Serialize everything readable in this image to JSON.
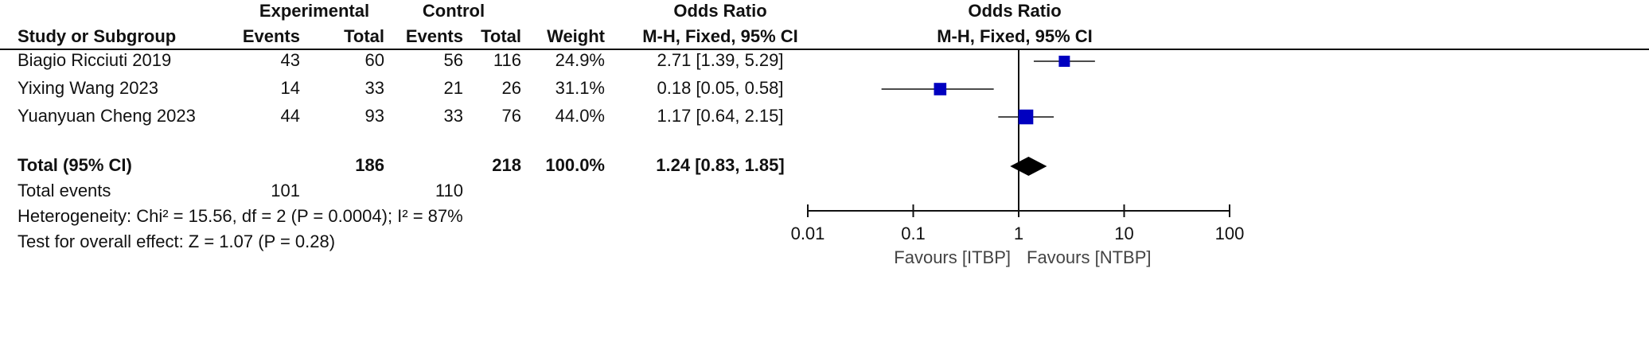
{
  "chart_data": {
    "type": "forest",
    "group_headers": {
      "experimental": "Experimental",
      "control": "Control",
      "odds_ratio": "Odds Ratio",
      "plot": "Odds Ratio"
    },
    "columns": {
      "study": "Study or Subgroup",
      "exp_events": "Events",
      "exp_total": "Total",
      "ctrl_events": "Events",
      "ctrl_total": "Total",
      "weight": "Weight",
      "ci": "M-H, Fixed, 95% CI",
      "plot_ci": "M-H, Fixed, 95% CI"
    },
    "studies": [
      {
        "name": "Biagio Ricciuti 2019",
        "exp_events": 43,
        "exp_total": 60,
        "ctrl_events": 56,
        "ctrl_total": 116,
        "weight": 24.9,
        "weight_label": "24.9%",
        "or": 2.71,
        "lower": 1.39,
        "upper": 5.29,
        "ci_label": "2.71 [1.39, 5.29]"
      },
      {
        "name": "Yixing Wang 2023",
        "exp_events": 14,
        "exp_total": 33,
        "ctrl_events": 21,
        "ctrl_total": 26,
        "weight": 31.1,
        "weight_label": "31.1%",
        "or": 0.18,
        "lower": 0.05,
        "upper": 0.58,
        "ci_label": "0.18 [0.05, 0.58]"
      },
      {
        "name": "Yuanyuan Cheng 2023",
        "exp_events": 44,
        "exp_total": 93,
        "ctrl_events": 33,
        "ctrl_total": 76,
        "weight": 44.0,
        "weight_label": "44.0%",
        "or": 1.17,
        "lower": 0.64,
        "upper": 2.15,
        "ci_label": "1.17 [0.64, 2.15]"
      }
    ],
    "total": {
      "name": "Total (95% CI)",
      "exp_total": 186,
      "ctrl_total": 218,
      "weight": 100.0,
      "weight_label": "100.0%",
      "or": 1.24,
      "lower": 0.83,
      "upper": 1.85,
      "ci_label": "1.24 [0.83, 1.85]"
    },
    "total_events": {
      "label": "Total events",
      "exp": 101,
      "ctrl": 110
    },
    "heterogeneity": "Heterogeneity: Chi² = 15.56, df = 2 (P = 0.0004); I² = 87%",
    "overall_effect": "Test for overall effect: Z = 1.07 (P = 0.28)",
    "xlim": [
      0.01,
      100
    ],
    "xticks": [
      0.01,
      0.1,
      1,
      10,
      100
    ],
    "log_scale": true,
    "favours": [
      "Favours [ITBP]",
      "Favours [NTBP]"
    ],
    "color": "#0000c0"
  }
}
